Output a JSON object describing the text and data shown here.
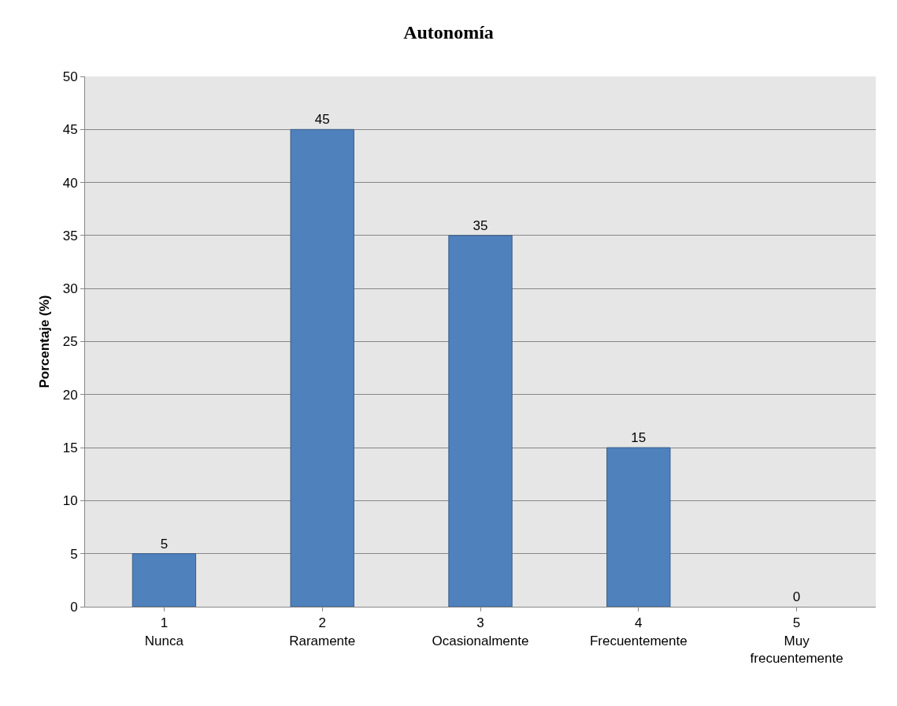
{
  "chart_data": {
    "type": "bar",
    "title": "Autonomía",
    "ylabel": "Porcentaje (%)",
    "categories": [
      "1\nNunca",
      "2\nRaramente",
      "3\nOcasionalmente",
      "4\nFrecuentemente",
      "5\nMuy\nfrecuentemente"
    ],
    "values": [
      5,
      45,
      35,
      15,
      0
    ],
    "color": "#4f81bd",
    "ylim": [
      0,
      50
    ],
    "yticks": [
      0,
      5,
      10,
      15,
      20,
      25,
      30,
      35,
      40,
      45,
      50
    ],
    "grid": "y",
    "data_labels": true,
    "legend": false
  }
}
